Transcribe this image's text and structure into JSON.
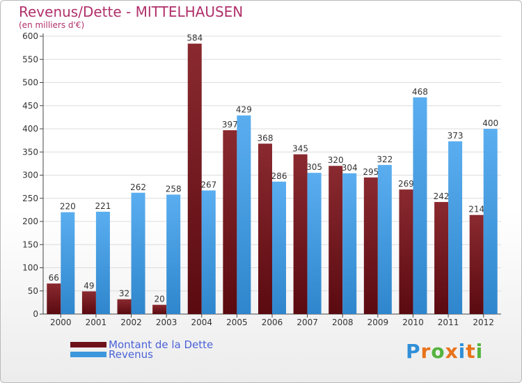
{
  "header": {
    "title": "Revenus/Dette - MITTELHAUSEN",
    "subtitle": "(en milliers d'€)"
  },
  "legend": {
    "items": [
      {
        "label": "Montant de la Dette",
        "color": "#6e1018"
      },
      {
        "label": "Revenus",
        "color": "#3d97dc"
      }
    ]
  },
  "logo": {
    "text": "Proxiti",
    "letter_colors": [
      "#2f8fd8",
      "#e8731a",
      "#54b33d",
      "#e8731a",
      "#2f8fd8",
      "#e8731a",
      "#54b33d"
    ]
  },
  "chart_data": {
    "type": "bar",
    "categories": [
      "2000",
      "2001",
      "2002",
      "2003",
      "2004",
      "2005",
      "2006",
      "2007",
      "2008",
      "2009",
      "2010",
      "2011",
      "2012"
    ],
    "series": [
      {
        "name": "Montant de la Dette",
        "values": [
          66,
          49,
          32,
          20,
          584,
          397,
          368,
          345,
          320,
          295,
          269,
          242,
          214
        ],
        "color": "#6e1018"
      },
      {
        "name": "Revenus",
        "values": [
          220,
          221,
          262,
          258,
          267,
          429,
          286,
          305,
          304,
          322,
          468,
          373,
          400
        ],
        "color": "#3d97dc"
      }
    ],
    "title": "Revenus/Dette - MITTELHAUSEN",
    "ylabel": "(en milliers d'€)",
    "xlabel": "",
    "ylim": [
      0,
      600
    ],
    "yticks": [
      0,
      50,
      100,
      150,
      200,
      250,
      300,
      350,
      400,
      450,
      500,
      550,
      600
    ],
    "grid": true,
    "legend": "bottom-left"
  }
}
